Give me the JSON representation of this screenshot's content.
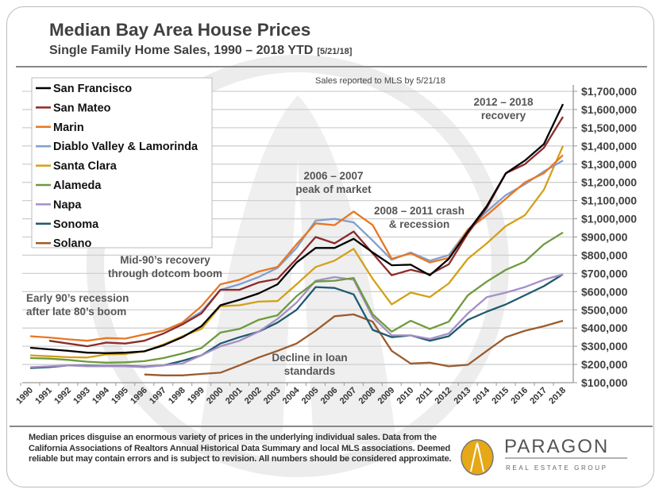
{
  "header": {
    "title": "Median Bay Area House Prices",
    "subtitle": "Single Family Home Sales, 1990 – 2018 YTD",
    "subtitle_date": "[5/21/18]"
  },
  "note": "Sales reported to MLS by 5/21/18",
  "footer": {
    "disclaimer": "Median prices disguise an enormous variety of prices in the underlying individual sales. Data from the California Associations of Realtors Annual Historical Data Summary and local MLS associations.  Deemed reliable but may contain errors and is subject to revision. All numbers should be considered approximate.",
    "logo_name": "PARAGON",
    "logo_tagline": "REAL ESTATE GROUP",
    "logo_color": "#e6a817"
  },
  "chart_data": {
    "type": "line",
    "title": "Median Bay Area House Prices",
    "xlabel": "",
    "ylabel": "",
    "ylim": [
      100000,
      1700000
    ],
    "y_ticks": [
      "$100,000",
      "$200,000",
      "$300,000",
      "$400,000",
      "$500,000",
      "$600,000",
      "$700,000",
      "$800,000",
      "$900,000",
      "$1,000,000",
      "$1,100,000",
      "$1,200,000",
      "$1,300,000",
      "$1,400,000",
      "$1,500,000",
      "$1,600,000",
      "$1,700,000"
    ],
    "y_axis_side": "right",
    "grid": true,
    "legend_placement": "top-left",
    "x": [
      "1990",
      "1991",
      "1992",
      "1993",
      "1994",
      "1995",
      "1996",
      "1997",
      "1998",
      "1999",
      "2000",
      "2001",
      "2002",
      "2003",
      "2004",
      "2005",
      "2006",
      "2007",
      "2008",
      "2009",
      "2010",
      "2011",
      "2012",
      "2013",
      "2014",
      "2015",
      "2016",
      "2017",
      "2018"
    ],
    "series": [
      {
        "name": "San Francisco",
        "color": "#000000",
        "values": [
          292000,
          283000,
          275000,
          265000,
          262000,
          265000,
          272000,
          305000,
          350000,
          410000,
          525000,
          555000,
          590000,
          640000,
          760000,
          840000,
          840000,
          890000,
          815000,
          745000,
          748000,
          690000,
          780000,
          930000,
          1070000,
          1250000,
          1320000,
          1410000,
          1630000
        ]
      },
      {
        "name": "San Mateo",
        "color": "#8b2a2a",
        "values": [
          null,
          330000,
          315000,
          300000,
          320000,
          315000,
          330000,
          370000,
          420000,
          480000,
          610000,
          610000,
          650000,
          670000,
          780000,
          900000,
          865000,
          930000,
          810000,
          690000,
          720000,
          695000,
          750000,
          920000,
          1060000,
          1250000,
          1300000,
          1390000,
          1560000
        ]
      },
      {
        "name": "Marin",
        "color": "#e87722",
        "values": [
          355000,
          348000,
          338000,
          330000,
          345000,
          342000,
          365000,
          385000,
          430000,
          520000,
          640000,
          665000,
          710000,
          735000,
          860000,
          975000,
          965000,
          1040000,
          965000,
          780000,
          810000,
          760000,
          785000,
          940000,
          1020000,
          1110000,
          1200000,
          1250000,
          1350000
        ]
      },
      {
        "name": "Diablo Valley & Lamorinda",
        "color": "#7f9fd0",
        "values": [
          null,
          null,
          null,
          null,
          null,
          null,
          365000,
          385000,
          425000,
          490000,
          610000,
          640000,
          680000,
          730000,
          840000,
          990000,
          1000000,
          980000,
          880000,
          775000,
          815000,
          770000,
          800000,
          940000,
          1040000,
          1130000,
          1190000,
          1260000,
          1320000
        ]
      },
      {
        "name": "Santa Clara",
        "color": "#d4a017",
        "values": [
          250000,
          245000,
          240000,
          238000,
          255000,
          258000,
          272000,
          310000,
          355000,
          395000,
          520000,
          525000,
          545000,
          548000,
          640000,
          735000,
          770000,
          835000,
          670000,
          530000,
          595000,
          570000,
          645000,
          780000,
          865000,
          960000,
          1020000,
          1160000,
          1400000
        ]
      },
      {
        "name": "Alameda",
        "color": "#6e9a3c",
        "values": [
          235000,
          232000,
          225000,
          215000,
          210000,
          212000,
          218000,
          235000,
          260000,
          290000,
          375000,
          395000,
          445000,
          470000,
          575000,
          655000,
          660000,
          675000,
          475000,
          380000,
          440000,
          395000,
          435000,
          580000,
          655000,
          720000,
          765000,
          860000,
          925000
        ]
      },
      {
        "name": "Napa",
        "color": "#a58fc8",
        "values": [
          185000,
          190000,
          195000,
          190000,
          190000,
          190000,
          185000,
          195000,
          205000,
          250000,
          300000,
          330000,
          380000,
          450000,
          540000,
          660000,
          680000,
          665000,
          460000,
          360000,
          360000,
          340000,
          370000,
          480000,
          570000,
          595000,
          625000,
          665000,
          695000
        ]
      },
      {
        "name": "Sonoma",
        "color": "#1f5a6e",
        "values": [
          180000,
          185000,
          195000,
          193000,
          192000,
          192000,
          188000,
          195000,
          220000,
          250000,
          315000,
          350000,
          380000,
          430000,
          500000,
          625000,
          620000,
          585000,
          390000,
          350000,
          360000,
          330000,
          355000,
          445000,
          490000,
          530000,
          580000,
          630000,
          695000
        ]
      },
      {
        "name": "Solano",
        "color": "#9c5b2c",
        "values": [
          null,
          null,
          null,
          null,
          null,
          null,
          145000,
          140000,
          140000,
          148000,
          155000,
          195000,
          238000,
          275000,
          315000,
          385000,
          465000,
          475000,
          435000,
          275000,
          205000,
          210000,
          190000,
          198000,
          275000,
          350000,
          385000,
          410000,
          440000
        ]
      }
    ],
    "annotations": [
      {
        "lines": [
          "Early 90’s recession",
          "after late 80’s boom"
        ]
      },
      {
        "lines": [
          "Mid-90’s recovery",
          "through dotcom boom"
        ]
      },
      {
        "lines": [
          "2006 – 2007",
          "peak of market"
        ]
      },
      {
        "lines": [
          "2008 – 2011 crash",
          "& recession"
        ]
      },
      {
        "lines": [
          "2012 – 2018",
          "recovery"
        ]
      },
      {
        "lines": [
          "Decline in loan",
          "standards"
        ]
      }
    ]
  }
}
